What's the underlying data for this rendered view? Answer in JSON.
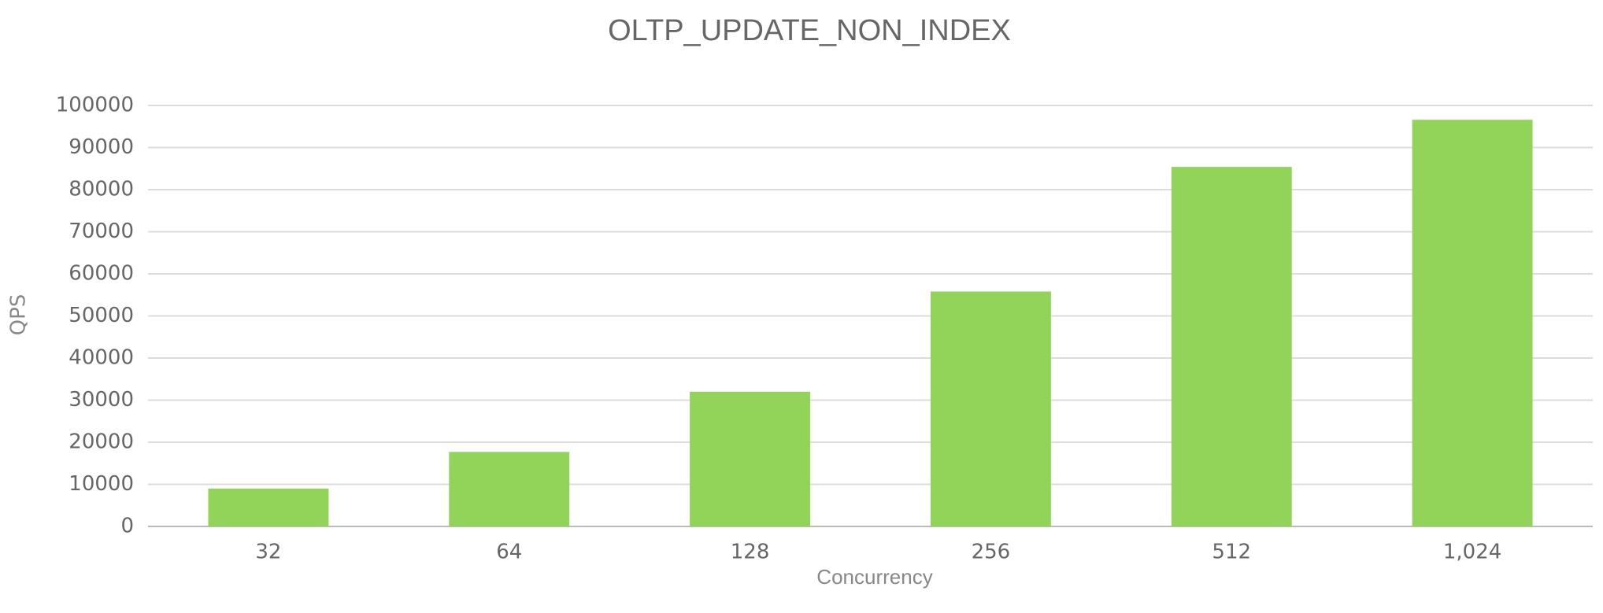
{
  "chart_data": {
    "type": "bar",
    "title": "OLTP_UPDATE_NON_INDEX",
    "x_label": "Concurrency",
    "y_label": "QPS",
    "categories": [
      "32",
      "64",
      "128",
      "256",
      "512",
      "1,024"
    ],
    "values": [
      9000,
      17700,
      32000,
      55800,
      85400,
      96600
    ],
    "color": "#92d35a",
    "ylim": [
      0,
      100000
    ],
    "yticks": [
      0,
      10000,
      20000,
      30000,
      40000,
      50000,
      60000,
      70000,
      80000,
      90000,
      100000
    ],
    "grid": true
  }
}
